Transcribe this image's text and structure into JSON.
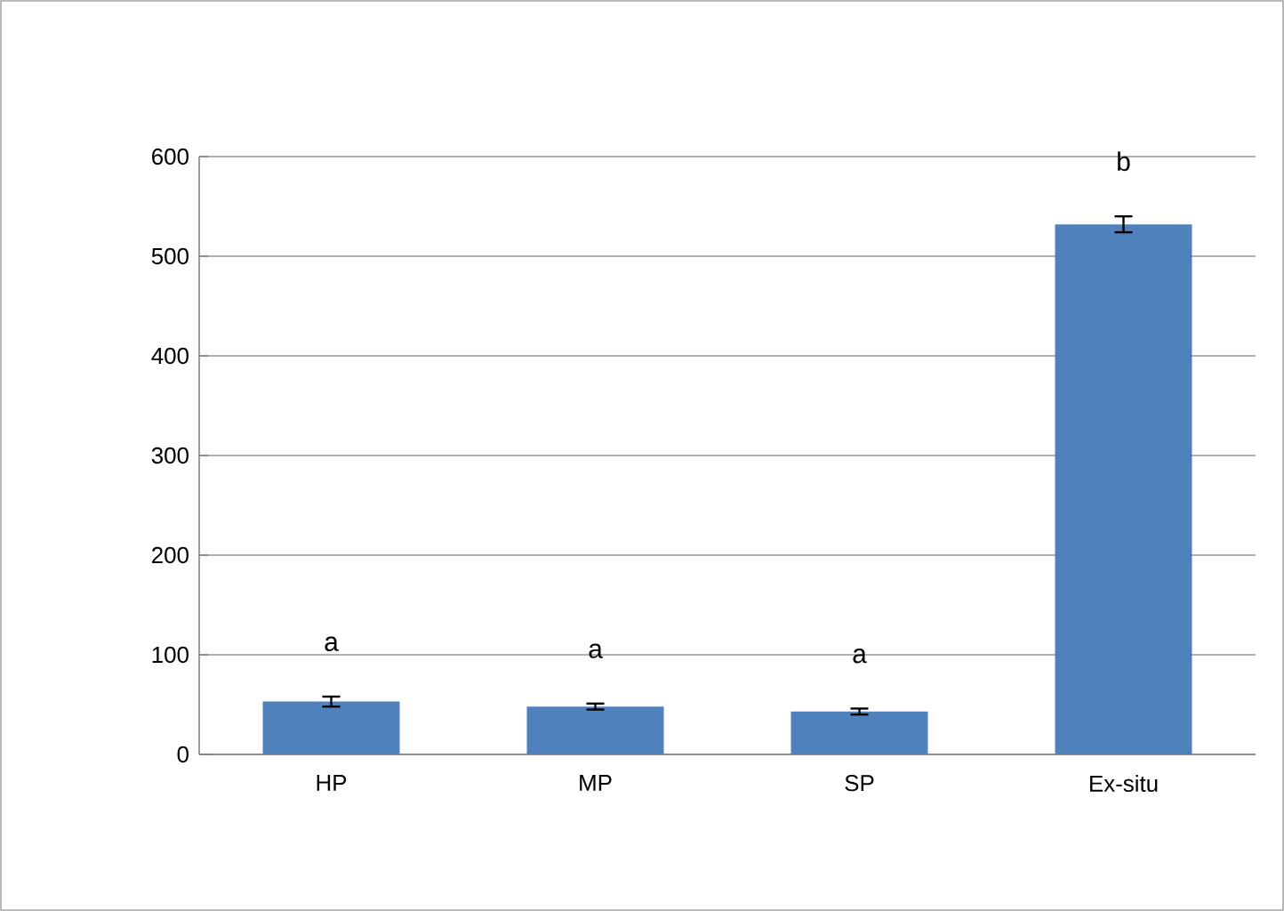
{
  "chart_data": {
    "type": "bar",
    "categories": [
      "HP",
      "MP",
      "SP",
      "Ex-situ"
    ],
    "values": [
      53,
      48,
      43,
      532
    ],
    "errors": [
      5,
      3,
      3,
      8
    ],
    "color": "#4f81bd",
    "ylim": [
      0,
      600
    ],
    "yticks": [
      0,
      100,
      200,
      300,
      400,
      500,
      600
    ],
    "grid": "y",
    "annotations": [
      "a",
      "a",
      "a",
      "b"
    ]
  }
}
